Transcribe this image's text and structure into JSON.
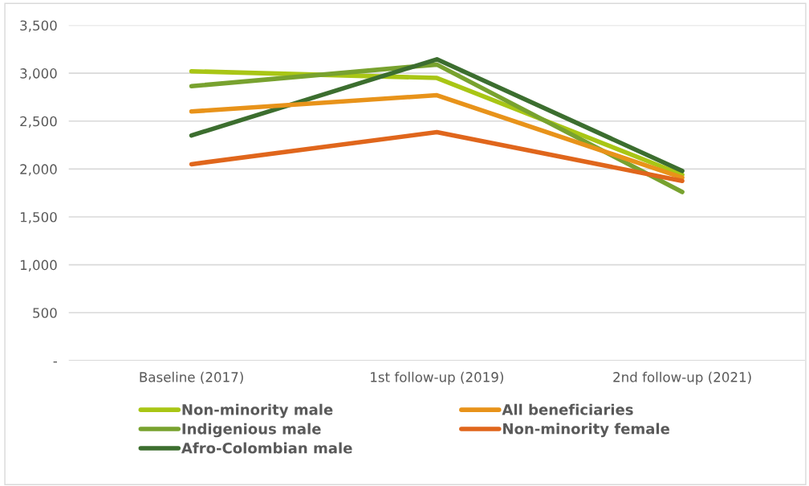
{
  "chart_data": {
    "type": "line",
    "categories": [
      "Baseline (2017)",
      "1st follow-up (2019)",
      "2nd follow-up (2021)"
    ],
    "series": [
      {
        "name": "Non-minority male",
        "color": "#a9c615",
        "values": [
          3020,
          2950,
          1940
        ]
      },
      {
        "name": "Indigenious male",
        "color": "#78a22f",
        "values": [
          2865,
          3090,
          1760
        ]
      },
      {
        "name": "Afro-Colombian male",
        "color": "#3c6e2f",
        "values": [
          2350,
          3145,
          1980
        ]
      },
      {
        "name": "All beneficiaries",
        "color": "#e8931a",
        "values": [
          2600,
          2770,
          1910
        ]
      },
      {
        "name": "Non-minority female",
        "color": "#e0661c",
        "values": [
          2050,
          2385,
          1875
        ]
      }
    ],
    "ylim": [
      0,
      3500
    ],
    "yticks": [
      {
        "value": 0,
        "label": "-"
      },
      {
        "value": 500,
        "label": "500"
      },
      {
        "value": 1000,
        "label": "1,000"
      },
      {
        "value": 1500,
        "label": "1,500"
      },
      {
        "value": 2000,
        "label": "2,000"
      },
      {
        "value": 2500,
        "label": "2,500"
      },
      {
        "value": 3000,
        "label": "3,000"
      },
      {
        "value": 3500,
        "label": "3,500"
      }
    ],
    "grid": "y",
    "legend": "bottom",
    "marker": "none",
    "line_style": "solid"
  }
}
